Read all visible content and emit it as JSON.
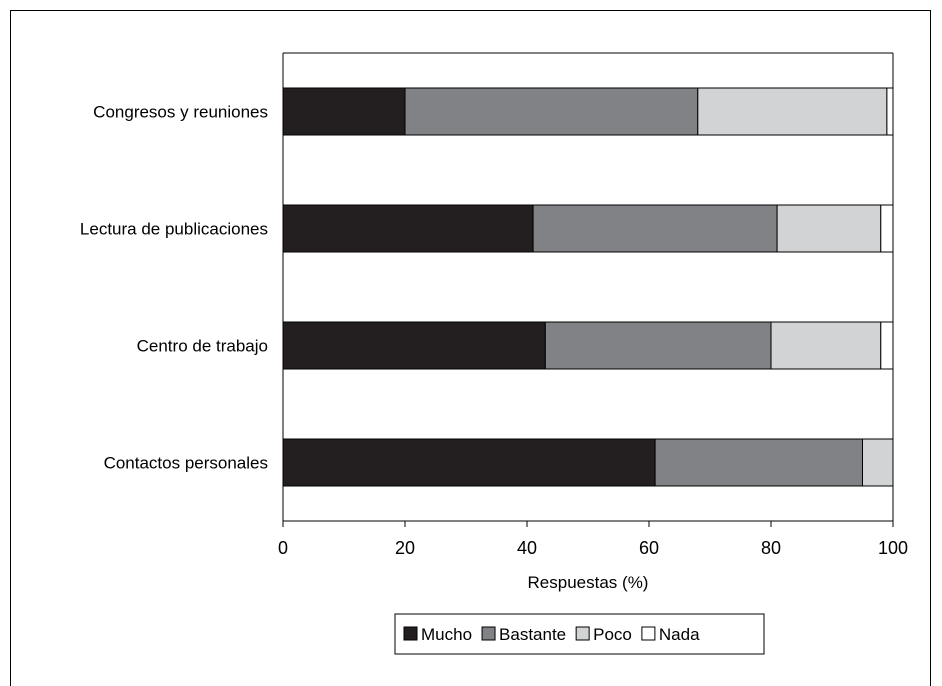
{
  "chart_data": {
    "type": "bar",
    "orientation": "horizontal",
    "stacked": true,
    "categories": [
      "Congresos y reuniones",
      "Lectura de publicaciones",
      "Centro de trabajo",
      "Contactos personales"
    ],
    "series": [
      {
        "name": "Mucho",
        "color": "#231f20",
        "values": [
          20,
          41,
          43,
          61
        ]
      },
      {
        "name": "Bastante",
        "color": "#808285",
        "values": [
          48,
          40,
          37,
          34
        ]
      },
      {
        "name": "Poco",
        "color": "#d1d3d4",
        "values": [
          31,
          17,
          18,
          5
        ]
      },
      {
        "name": "Nada",
        "color": "#ffffff",
        "values": [
          1,
          2,
          2,
          0
        ]
      }
    ],
    "xlabel": "Respuestas (%)",
    "ylabel": "",
    "xlim": [
      0,
      100
    ],
    "xticks": [
      "0",
      "20",
      "40",
      "60",
      "80",
      "100"
    ],
    "grid": false,
    "legend": "bottom"
  }
}
